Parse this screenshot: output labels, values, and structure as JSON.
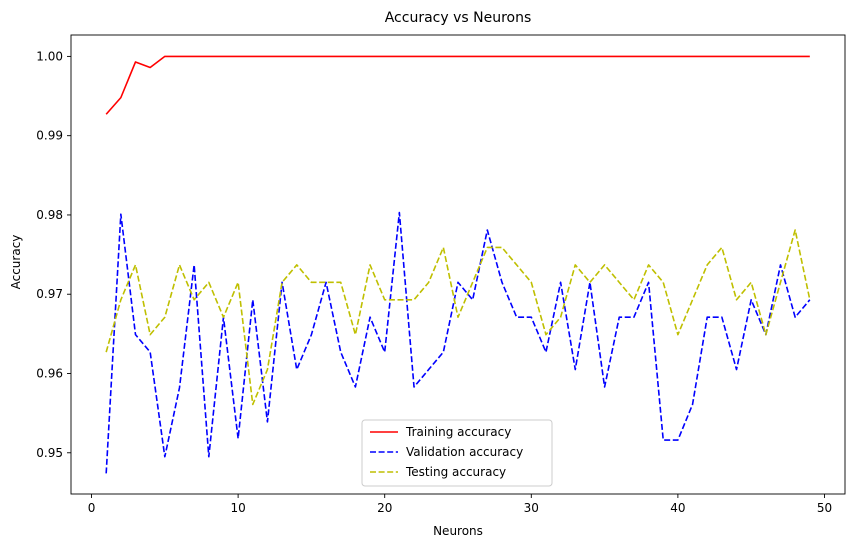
{
  "chart_data": {
    "type": "line",
    "title": "Accuracy vs Neurons",
    "xlabel": "Neurons",
    "ylabel": "Accuracy",
    "xlim": [
      -1.4,
      51.4
    ],
    "ylim": [
      0.9448,
      1.0027
    ],
    "xticks": [
      0,
      10,
      20,
      30,
      40,
      50
    ],
    "xtick_labels": [
      "0",
      "10",
      "20",
      "30",
      "40",
      "50"
    ],
    "yticks": [
      0.95,
      0.96,
      0.97,
      0.98,
      0.99,
      1.0
    ],
    "ytick_labels": [
      "0.95",
      "0.96",
      "0.97",
      "0.98",
      "0.99",
      "1.00"
    ],
    "grid": false,
    "legend_position": "lower-center",
    "x": [
      1,
      2,
      3,
      4,
      5,
      6,
      7,
      8,
      9,
      10,
      11,
      12,
      13,
      14,
      15,
      16,
      17,
      18,
      19,
      20,
      21,
      22,
      23,
      24,
      25,
      26,
      27,
      28,
      29,
      30,
      31,
      32,
      33,
      34,
      35,
      36,
      37,
      38,
      39,
      40,
      41,
      42,
      43,
      44,
      45,
      46,
      47,
      48,
      49
    ],
    "series": [
      {
        "name": "Training accuracy",
        "color": "#ff0000",
        "dash": "solid",
        "values": [
          0.9927,
          0.9948,
          0.9993,
          0.9986,
          1,
          1,
          1,
          1,
          1,
          1,
          1,
          1,
          1,
          1,
          1,
          1,
          1,
          1,
          1,
          1,
          1,
          1,
          1,
          1,
          1,
          1,
          1,
          1,
          1,
          1,
          1,
          1,
          1,
          1,
          1,
          1,
          1,
          1,
          1,
          1,
          1,
          1,
          1,
          1,
          1,
          1,
          1,
          1,
          1
        ]
      },
      {
        "name": "Validation accuracy",
        "color": "#0000ff",
        "dash": "dashed",
        "values": [
          0.9474,
          0.9801,
          0.9649,
          0.9627,
          0.9495,
          0.9582,
          0.9737,
          0.9495,
          0.9671,
          0.9518,
          0.9693,
          0.9539,
          0.9715,
          0.9605,
          0.9649,
          0.9715,
          0.9627,
          0.9583,
          0.9671,
          0.9627,
          0.9803,
          0.9583,
          0.9605,
          0.9627,
          0.9715,
          0.9693,
          0.9781,
          0.9715,
          0.9671,
          0.9671,
          0.9627,
          0.9715,
          0.9605,
          0.9715,
          0.9583,
          0.9671,
          0.9671,
          0.9715,
          0.9516,
          0.9516,
          0.9561,
          0.9671,
          0.9671,
          0.9605,
          0.9693,
          0.9649,
          0.9737,
          0.9671,
          0.9693
        ]
      },
      {
        "name": "Testing accuracy",
        "color": "#bfbf00",
        "dash": "dashed",
        "values": [
          0.9627,
          0.9693,
          0.9737,
          0.9649,
          0.9671,
          0.9737,
          0.9693,
          0.9715,
          0.9671,
          0.9715,
          0.9561,
          0.9605,
          0.9715,
          0.9737,
          0.9715,
          0.9715,
          0.9715,
          0.9649,
          0.9737,
          0.9693,
          0.9693,
          0.9693,
          0.9715,
          0.9759,
          0.9671,
          0.9715,
          0.9759,
          0.9759,
          0.9737,
          0.9715,
          0.9649,
          0.9671,
          0.9737,
          0.9715,
          0.9737,
          0.9715,
          0.9693,
          0.9737,
          0.9715,
          0.9649,
          0.9693,
          0.9737,
          0.9759,
          0.9693,
          0.9715,
          0.9649,
          0.9715,
          0.9781,
          0.9693
        ]
      }
    ]
  }
}
